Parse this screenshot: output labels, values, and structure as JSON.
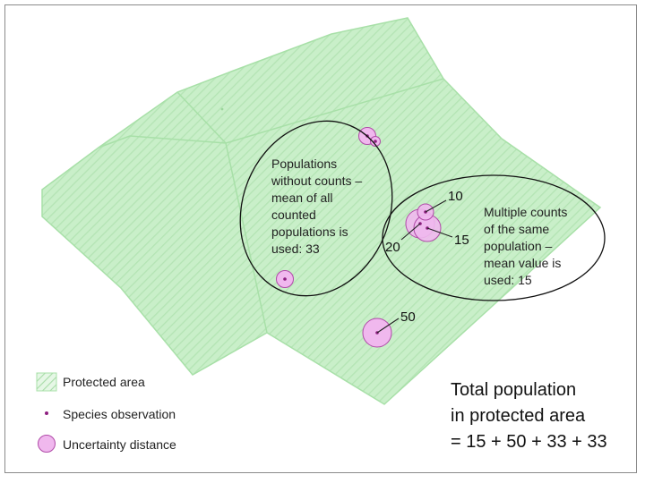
{
  "colors": {
    "area_fill": "#c9efc9",
    "area_stroke": "#a8e0a8",
    "circle_fill": "#f0b8ee",
    "circle_stroke": "#b04aa8",
    "dot": "#8e1f80"
  },
  "group_without_counts": {
    "lines": [
      "Populations",
      "without counts –",
      "mean of all",
      "counted",
      "populations is",
      "used: 33"
    ]
  },
  "group_multiple_counts": {
    "lines": [
      "Multiple counts",
      "of the same",
      "population –",
      "mean value is",
      "used: 15"
    ]
  },
  "counts": {
    "c10": "10",
    "c15": "15",
    "c20": "20",
    "c50": "50"
  },
  "legend": {
    "protected_area": "Protected area",
    "species_observation": "Species observation",
    "uncertainty_distance": "Uncertainty distance"
  },
  "total": {
    "line1": "Total population",
    "line2": "in protected area",
    "line3": "= 15 + 50 + 33 + 33"
  }
}
